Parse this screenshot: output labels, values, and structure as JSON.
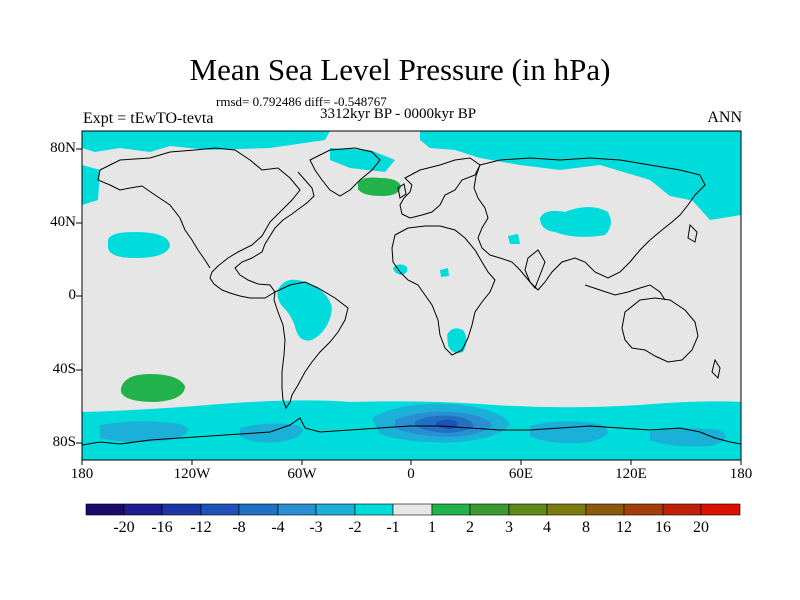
{
  "title": "Mean Sea Level Pressure (in hPa)",
  "stats_line": "rmsd= 0.792486 diff= -0.548767",
  "period": "3312kyr BP - 0000kyr BP",
  "experiment": "Expt = tEwTO-tevta",
  "season": "ANN",
  "lat_ticks": [
    "80N",
    "40N",
    "0",
    "40S",
    "80S"
  ],
  "lon_ticks": [
    "180",
    "120W",
    "60W",
    "0",
    "60E",
    "120E",
    "180"
  ],
  "colorbar": {
    "labels": [
      "-20",
      "-16",
      "-12",
      "-8",
      "-4",
      "-3",
      "-2",
      "-1",
      "1",
      "2",
      "3",
      "4",
      "8",
      "12",
      "16",
      "20"
    ],
    "colors": [
      "#1a0b6b",
      "#1e1e90",
      "#1d36a6",
      "#1f52b8",
      "#2070c4",
      "#2a8fd2",
      "#1ab0d8",
      "#00dcdc",
      "#e6e6e6",
      "#22b24c",
      "#3d9a30",
      "#5e8a18",
      "#7d7a10",
      "#8d5a0c",
      "#a3400a",
      "#c02008",
      "#dd1000"
    ]
  },
  "colors": {
    "background_field": "#e6e6e6",
    "neg_1_2": "#00dcdc",
    "neg_2_3": "#1ab0d8",
    "neg_3_4": "#2a8fd2",
    "neg_4_8": "#2070c4",
    "neg_8_12": "#1f52b8",
    "pos_1_2": "#22b24c"
  }
}
